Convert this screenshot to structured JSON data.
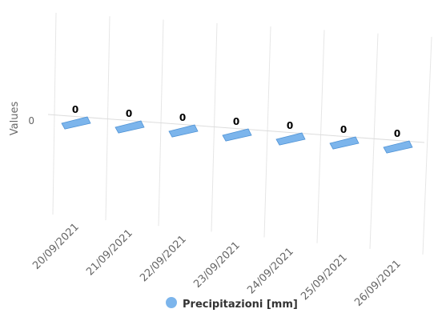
{
  "chart_data": {
    "type": "bar",
    "categories": [
      "20/09/2021",
      "21/09/2021",
      "22/09/2021",
      "23/09/2021",
      "24/09/2021",
      "25/09/2021",
      "26/09/2021"
    ],
    "series": [
      {
        "name": "Precipitazioni [mm]",
        "values": [
          0,
          0,
          0,
          0,
          0,
          0,
          0
        ]
      }
    ],
    "ylabel": "Values",
    "yticks": [
      "0"
    ],
    "data_labels": true,
    "grid": true,
    "legend_position": "bottom",
    "colors": {
      "series": "#7cb5ec",
      "series_edge": "#4f93d6",
      "grid": "#e6e6e6",
      "text": "#666666",
      "label": "#000000"
    }
  }
}
